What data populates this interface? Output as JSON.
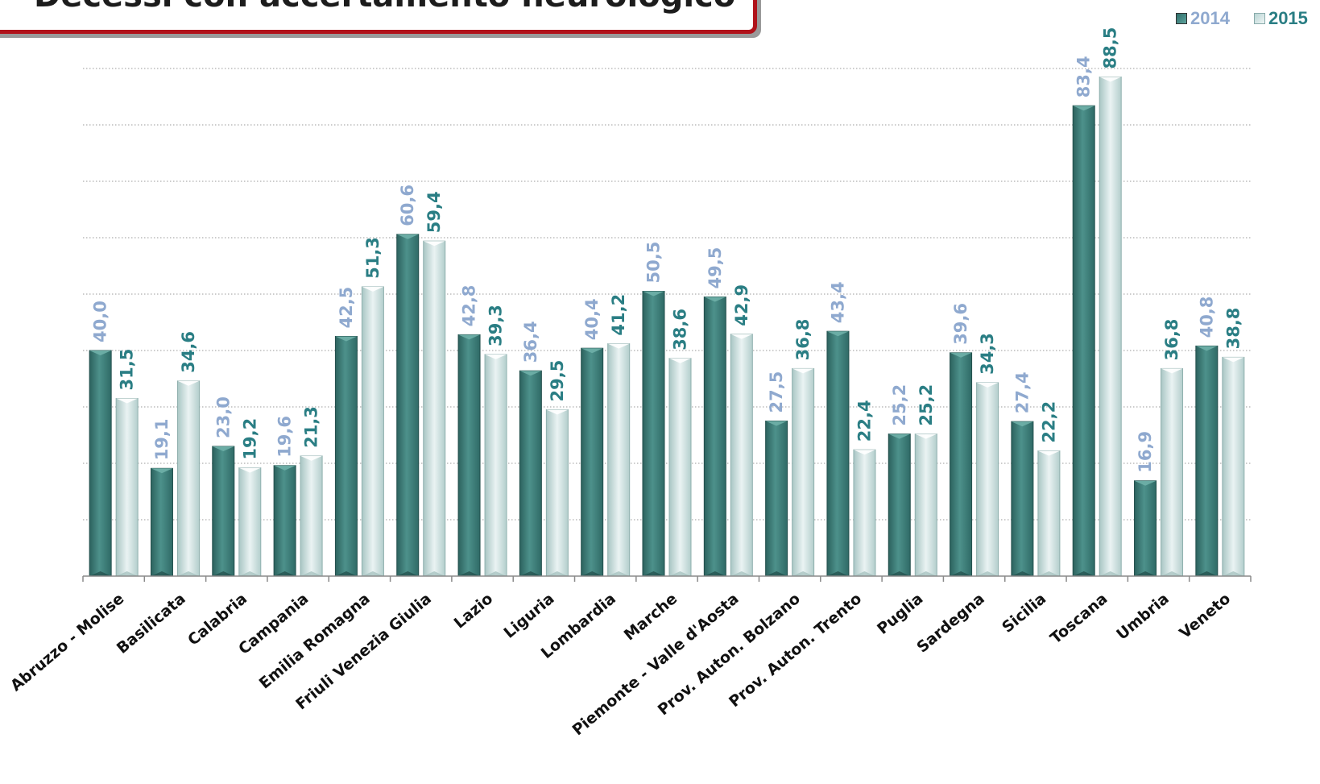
{
  "header": {
    "title": "Decessi con accertamento neurologico"
  },
  "legend": [
    {
      "label": "2014",
      "color": "#3f8680"
    },
    {
      "label": "2015",
      "color": "#c9dedd"
    }
  ],
  "colors": {
    "bar_2014": "#3f8680",
    "bar_2015": "#cfe2e1",
    "label_2014": "#8fa9cf",
    "label_2015": "#2a7e84"
  },
  "chart_data": {
    "type": "bar",
    "title": "Decessi con accertamento neurologico",
    "xlabel": "",
    "ylabel": "",
    "ylim": [
      0,
      90
    ],
    "grid": true,
    "legend_position": "top-right",
    "categories": [
      "Abruzzo - Molise",
      "Basilicata",
      "Calabria",
      "Campania",
      "Emilia Romagna",
      "Friuli Venezia Giulia",
      "Lazio",
      "Liguria",
      "Lombardia",
      "Marche",
      "Piemonte - Valle d'Aosta",
      "Prov. Auton. Bolzano",
      "Prov. Auton. Trento",
      "Puglia",
      "Sardegna",
      "Sicilia",
      "Toscana",
      "Umbria",
      "Veneto"
    ],
    "series": [
      {
        "name": "2014",
        "values": [
          40.0,
          19.1,
          23.0,
          19.6,
          42.5,
          60.6,
          42.8,
          36.4,
          40.4,
          50.5,
          49.5,
          27.5,
          43.4,
          25.2,
          39.6,
          27.4,
          83.4,
          16.9,
          40.8
        ],
        "labels": [
          "40,0",
          "19,1",
          "23,0",
          "19,6",
          "42,5",
          "60,6",
          "42,8",
          "36,4",
          "40,4",
          "50,5",
          "49,5",
          "27,5",
          "43,4",
          "25,2",
          "39,6",
          "27,4",
          "83,4",
          "16,9",
          "40,8"
        ]
      },
      {
        "name": "2015",
        "values": [
          31.5,
          34.6,
          19.2,
          21.3,
          51.3,
          59.4,
          39.3,
          29.5,
          41.2,
          38.6,
          42.9,
          36.8,
          22.4,
          25.2,
          34.3,
          22.2,
          88.5,
          36.8,
          38.8
        ],
        "labels": [
          "31,5",
          "34,6",
          "19,2",
          "21,3",
          "51,3",
          "59,4",
          "39,3",
          "29,5",
          "41,2",
          "38,6",
          "42,9",
          "36,8",
          "22,4",
          "25,2",
          "34,3",
          "22,2",
          "88,5",
          "36,8",
          "38,8"
        ]
      }
    ]
  }
}
